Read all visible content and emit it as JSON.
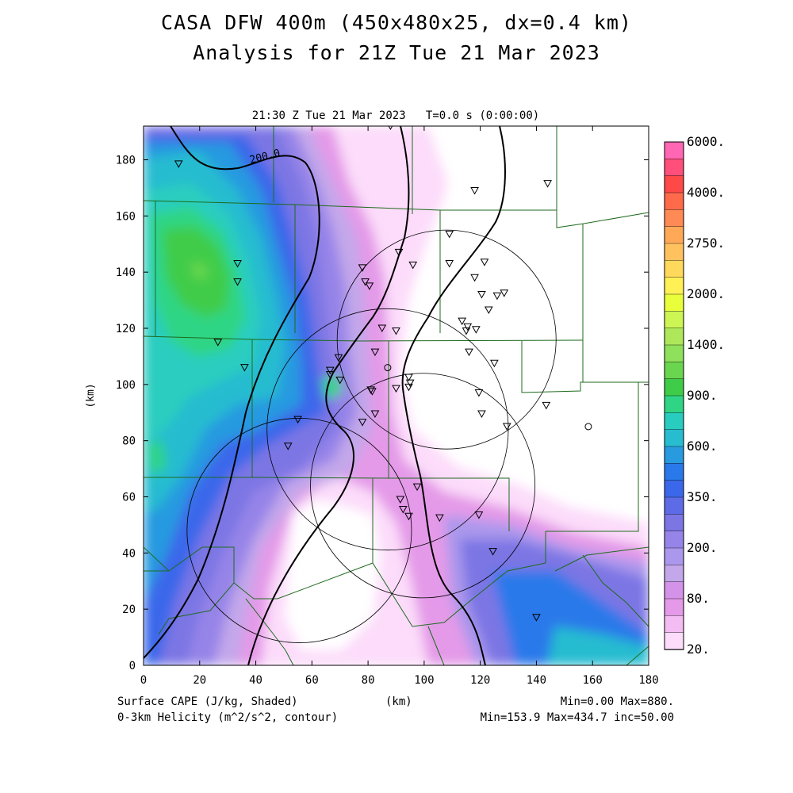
{
  "header": {
    "title_line1": "CASA DFW 400m (450x480x25, dx=0.4 km)",
    "title_line2": "Analysis for 21Z Tue 21 Mar 2023",
    "valid_time": "21:30 Z Tue 21 Mar 2023   T=0.0 s (0:00:00)"
  },
  "axes": {
    "unit_label": "(km)",
    "x_ticks": [
      "0",
      "20",
      "40",
      "60",
      "80",
      "100",
      "120",
      "140",
      "160",
      "180"
    ],
    "y_ticks": [
      "0",
      "20",
      "40",
      "60",
      "80",
      "100",
      "120",
      "140",
      "160",
      "180"
    ],
    "x_range_km": [
      0,
      180
    ],
    "y_range_km": [
      0,
      192
    ]
  },
  "contour_label": "200.0",
  "colorbar": {
    "levels": [
      "6000.",
      "4000.",
      "2750.",
      "2000.",
      "1400.",
      "900.",
      "600.",
      "350.",
      "200.",
      "80.",
      "20."
    ],
    "colors": [
      "#ff66b3",
      "#ff4f7a",
      "#ff4848",
      "#ff6a4a",
      "#ff8a55",
      "#ffa958",
      "#ffc25e",
      "#ffd95c",
      "#fff056",
      "#eaff3b",
      "#cdf554",
      "#aee85a",
      "#8fe05a",
      "#6ad54f",
      "#3fcc48",
      "#2fd584",
      "#29cdbf",
      "#28bcd0",
      "#289ae0",
      "#2979ea",
      "#3b68ea",
      "#5d6ce6",
      "#7c76e4",
      "#9684e8",
      "#ab98ec",
      "#c3a7ea",
      "#d493e8",
      "#e49ae8",
      "#f3bdf3",
      "#fcdcfa"
    ]
  },
  "footer": {
    "left1": "Surface CAPE (J/kg, Shaded)",
    "left2": "0-3km Helicity (m^2/s^2, contour)",
    "center": "(km)",
    "right1": "Min=0.00 Max=880.",
    "right2": "Min=153.9 Max=434.7 inc=50.00"
  },
  "stations_km": [
    [
      12.5,
      178.5
    ],
    [
      88,
      192
    ],
    [
      118,
      169
    ],
    [
      144,
      171.5
    ],
    [
      33.5,
      143
    ],
    [
      33.5,
      136.5
    ],
    [
      26.5,
      115
    ],
    [
      36,
      106
    ],
    [
      78,
      141.5
    ],
    [
      79,
      136.5
    ],
    [
      80.5,
      135
    ],
    [
      91,
      147
    ],
    [
      96,
      142.5
    ],
    [
      109,
      153.5
    ],
    [
      109,
      143
    ],
    [
      121.5,
      143.5
    ],
    [
      118,
      138
    ],
    [
      120.5,
      132
    ],
    [
      126,
      131.5
    ],
    [
      128.5,
      132.5
    ],
    [
      123,
      126.5
    ],
    [
      113.5,
      122.5
    ],
    [
      115.5,
      120.5
    ],
    [
      115,
      119
    ],
    [
      118.5,
      119.5
    ],
    [
      85,
      120
    ],
    [
      90,
      119
    ],
    [
      82.5,
      111.5
    ],
    [
      69.5,
      109.5
    ],
    [
      66.5,
      105
    ],
    [
      66.5,
      103.5
    ],
    [
      70,
      101.5
    ],
    [
      81,
      98
    ],
    [
      81.5,
      97.5
    ],
    [
      90,
      98.5
    ],
    [
      94.5,
      102.5
    ],
    [
      95,
      100.5
    ],
    [
      94.5,
      99
    ],
    [
      116,
      111.5
    ],
    [
      125,
      107.5
    ],
    [
      119.5,
      97
    ],
    [
      120.5,
      89.5
    ],
    [
      129.5,
      85
    ],
    [
      143.5,
      92.5
    ],
    [
      78,
      86.5
    ],
    [
      82.5,
      89.5
    ],
    [
      55,
      87.5
    ],
    [
      51.5,
      78
    ],
    [
      91.5,
      59
    ],
    [
      92.5,
      55.5
    ],
    [
      94.5,
      53
    ],
    [
      97.5,
      63.5
    ],
    [
      105.5,
      52.5
    ],
    [
      119.5,
      53.5
    ],
    [
      124.5,
      40.5
    ],
    [
      140,
      17
    ]
  ],
  "circle_stations_km": [
    [
      87,
      106
    ],
    [
      158.5,
      85
    ]
  ],
  "radar_rings_km": [
    [
      55.5,
      48,
      40
    ],
    [
      87,
      84,
      43
    ],
    [
      108,
      116,
      39
    ],
    [
      99.5,
      64,
      40
    ]
  ]
}
